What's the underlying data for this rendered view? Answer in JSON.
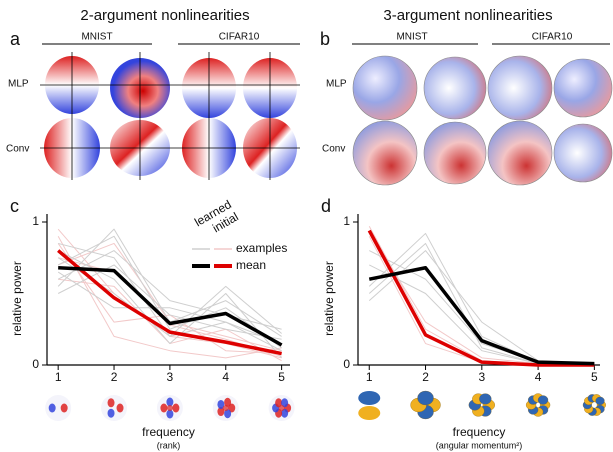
{
  "heatmaps": {
    "a": {
      "letter": "a",
      "title": "2-argument nonlinearities",
      "columns": [
        "MNIST",
        "CIFAR10"
      ],
      "rows": [
        "MLP",
        "Conv"
      ]
    },
    "b": {
      "letter": "b",
      "title": "3-argument nonlinearities",
      "columns": [
        "MNIST",
        "CIFAR10"
      ],
      "rows": [
        "MLP",
        "Conv"
      ]
    }
  },
  "chart_data": [
    {
      "type": "line",
      "letter": "c",
      "y_label": "relative power",
      "x_label": "frequency",
      "x_sublabel": "(rank)",
      "legend": {
        "columns": [
          "learned",
          "initial"
        ],
        "rows": [
          "examples",
          "mean"
        ]
      },
      "x": [
        1,
        2,
        3,
        4,
        5
      ],
      "xlim": [
        0.8,
        5.15
      ],
      "xticks": [
        1,
        2,
        3,
        4,
        5
      ],
      "ylim": [
        0,
        1
      ],
      "yticks": [
        0,
        1
      ],
      "series": [
        {
          "color": "#f2c9c9",
          "width": 1,
          "values": [
            0.95,
            0.5,
            0.2,
            0.15,
            0.05
          ]
        },
        {
          "color": "#f2c9c9",
          "width": 1,
          "values": [
            0.7,
            0.85,
            0.3,
            0.2,
            0.1
          ]
        },
        {
          "color": "#f2c9c9",
          "width": 1,
          "values": [
            0.85,
            0.3,
            0.35,
            0.1,
            0.08
          ]
        },
        {
          "color": "#f2c9c9",
          "width": 1,
          "values": [
            0.6,
            0.55,
            0.15,
            0.25,
            0.03
          ]
        },
        {
          "color": "#f2c9c9",
          "width": 1,
          "values": [
            0.9,
            0.2,
            0.1,
            0.05,
            0.12
          ]
        },
        {
          "color": "#f2c9c9",
          "width": 1,
          "values": [
            0.75,
            0.65,
            0.28,
            0.18,
            0.06
          ]
        },
        {
          "color": "#cfcfcf",
          "width": 1,
          "values": [
            0.55,
            0.95,
            0.3,
            0.45,
            0.2
          ]
        },
        {
          "color": "#cfcfcf",
          "width": 1,
          "values": [
            0.75,
            0.5,
            0.2,
            0.3,
            0.1
          ]
        },
        {
          "color": "#cfcfcf",
          "width": 1,
          "values": [
            0.6,
            0.8,
            0.45,
            0.35,
            0.25
          ]
        },
        {
          "color": "#cfcfcf",
          "width": 1,
          "values": [
            0.8,
            0.6,
            0.15,
            0.5,
            0.05
          ]
        },
        {
          "color": "#cfcfcf",
          "width": 1,
          "values": [
            0.5,
            0.7,
            0.35,
            0.25,
            0.18
          ]
        },
        {
          "color": "#cfcfcf",
          "width": 1,
          "values": [
            0.7,
            0.9,
            0.25,
            0.4,
            0.12
          ]
        },
        {
          "color": "#cfcfcf",
          "width": 1,
          "values": [
            0.65,
            0.4,
            0.4,
            0.3,
            0.15
          ]
        },
        {
          "color": "#cfcfcf",
          "width": 1,
          "values": [
            0.85,
            0.75,
            0.2,
            0.55,
            0.22
          ]
        },
        {
          "color": "#dd0000",
          "width": 3.5,
          "values": [
            0.8,
            0.47,
            0.23,
            0.16,
            0.08
          ]
        },
        {
          "color": "#000000",
          "width": 3.5,
          "values": [
            0.68,
            0.66,
            0.29,
            0.36,
            0.14
          ]
        }
      ]
    },
    {
      "type": "line",
      "letter": "d",
      "y_label": "relative power",
      "x_label": "frequency",
      "x_sublabel": "(angular momentum²)",
      "x": [
        1,
        2,
        3,
        4,
        5
      ],
      "xlim": [
        0.8,
        5.1
      ],
      "xticks": [
        1,
        2,
        3,
        4,
        5
      ],
      "ylim": [
        0,
        1
      ],
      "yticks": [
        0,
        1
      ],
      "series": [
        {
          "color": "#f2c9c9",
          "width": 1,
          "values": [
            0.97,
            0.25,
            0.03,
            0.0,
            0.0
          ]
        },
        {
          "color": "#f2c9c9",
          "width": 1,
          "values": [
            0.9,
            0.15,
            0.02,
            0.0,
            0.0
          ]
        },
        {
          "color": "#f2c9c9",
          "width": 1,
          "values": [
            0.93,
            0.3,
            0.05,
            0.01,
            0.0
          ]
        },
        {
          "color": "#cfcfcf",
          "width": 1,
          "values": [
            0.55,
            0.92,
            0.2,
            0.02,
            0.0
          ]
        },
        {
          "color": "#cfcfcf",
          "width": 1,
          "values": [
            0.7,
            0.5,
            0.1,
            0.01,
            0.0
          ]
        },
        {
          "color": "#cfcfcf",
          "width": 1,
          "values": [
            0.45,
            0.8,
            0.3,
            0.03,
            0.01
          ]
        },
        {
          "color": "#cfcfcf",
          "width": 1,
          "values": [
            0.8,
            0.6,
            0.15,
            0.02,
            0.0
          ]
        },
        {
          "color": "#cfcfcf",
          "width": 1,
          "values": [
            0.5,
            0.85,
            0.12,
            0.01,
            0.0
          ]
        },
        {
          "color": "#dd0000",
          "width": 3.5,
          "values": [
            0.94,
            0.21,
            0.02,
            0.0,
            0.0
          ]
        },
        {
          "color": "#000000",
          "width": 3.5,
          "values": [
            0.6,
            0.68,
            0.17,
            0.02,
            0.01
          ]
        }
      ]
    }
  ]
}
